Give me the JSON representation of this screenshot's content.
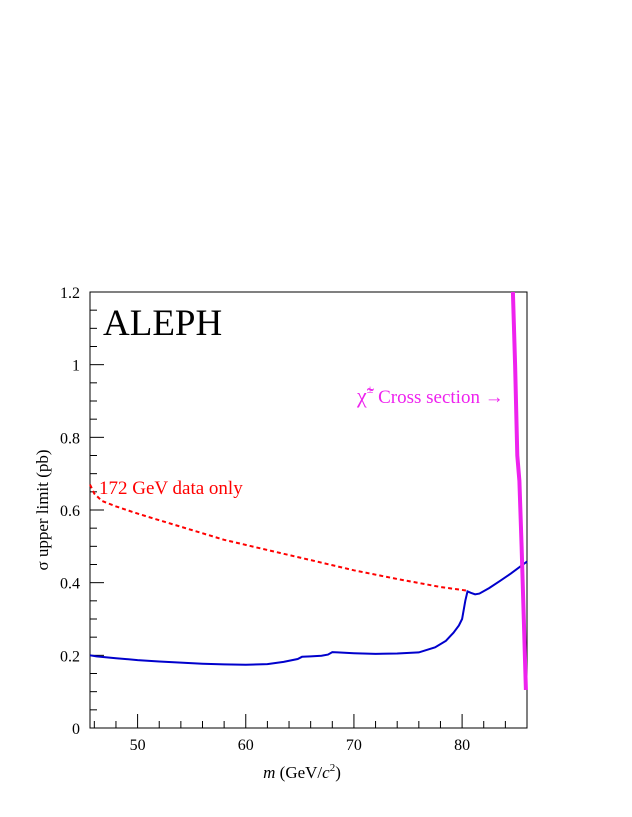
{
  "chart_data": {
    "type": "line",
    "title_label": "ALEPH",
    "xlabel_italic": "m",
    "xlabel_rest": " (GeV/",
    "xlabel_c": "c",
    "xlabel_sup": "2",
    "xlabel_close": ")",
    "ylabel": "σ upper limit (pb)",
    "xlim": [
      45.6,
      86.0
    ],
    "ylim": [
      0,
      1.2
    ],
    "x_ticks": [
      50,
      60,
      70,
      80
    ],
    "x_tick_labels": [
      "50",
      "60",
      "70",
      "80"
    ],
    "y_ticks": [
      0,
      0.2,
      0.4,
      0.6,
      0.8,
      1.0,
      1.2
    ],
    "y_tick_labels": [
      "0",
      "0.2",
      "0.4",
      "0.6",
      "0.8",
      "1",
      "1.2"
    ],
    "grid": false,
    "colors": {
      "limit": "#0000cc",
      "data172": "#ff0000",
      "cross_section": "#ee22ee"
    },
    "annotations": {
      "data172": "172 GeV data only",
      "cross_section_symbol": "χ̃",
      "cross_section_sup": "±",
      "cross_section_text": " Cross section →"
    },
    "series": [
      {
        "style": "solid",
        "x": [
          45.6,
          46.2,
          48,
          50,
          52,
          54,
          56,
          58,
          60,
          62,
          63.5,
          64.8,
          65.2,
          66,
          67,
          67.6,
          68.0,
          68.5,
          70,
          72,
          74,
          76,
          77.5,
          78.5,
          79.2,
          79.7,
          80.0,
          80.3,
          80.5,
          80.8,
          81.2,
          81.6,
          82.5,
          83.5,
          84.5,
          85.5,
          86.0
        ],
        "y": [
          0.2,
          0.197,
          0.192,
          0.187,
          0.183,
          0.18,
          0.177,
          0.175,
          0.174,
          0.176,
          0.182,
          0.19,
          0.196,
          0.197,
          0.199,
          0.202,
          0.209,
          0.208,
          0.206,
          0.204,
          0.205,
          0.208,
          0.222,
          0.24,
          0.262,
          0.282,
          0.3,
          0.35,
          0.376,
          0.372,
          0.368,
          0.37,
          0.385,
          0.405,
          0.425,
          0.447,
          0.458
        ]
      },
      {
        "style": "dashed",
        "x": [
          45.6,
          46.0,
          46.7,
          48,
          50,
          52,
          55,
          58,
          62,
          66,
          70,
          74,
          78,
          80.5
        ],
        "y": [
          0.67,
          0.645,
          0.625,
          0.61,
          0.59,
          0.572,
          0.545,
          0.518,
          0.49,
          0.462,
          0.434,
          0.41,
          0.388,
          0.378
        ]
      },
      {
        "style": "solid-thick",
        "x": [
          84.7,
          84.9,
          85.1,
          85.3,
          85.5,
          85.7,
          85.9
        ],
        "y": [
          1.2,
          1.0,
          0.75,
          0.68,
          0.5,
          0.3,
          0.105
        ]
      }
    ]
  }
}
